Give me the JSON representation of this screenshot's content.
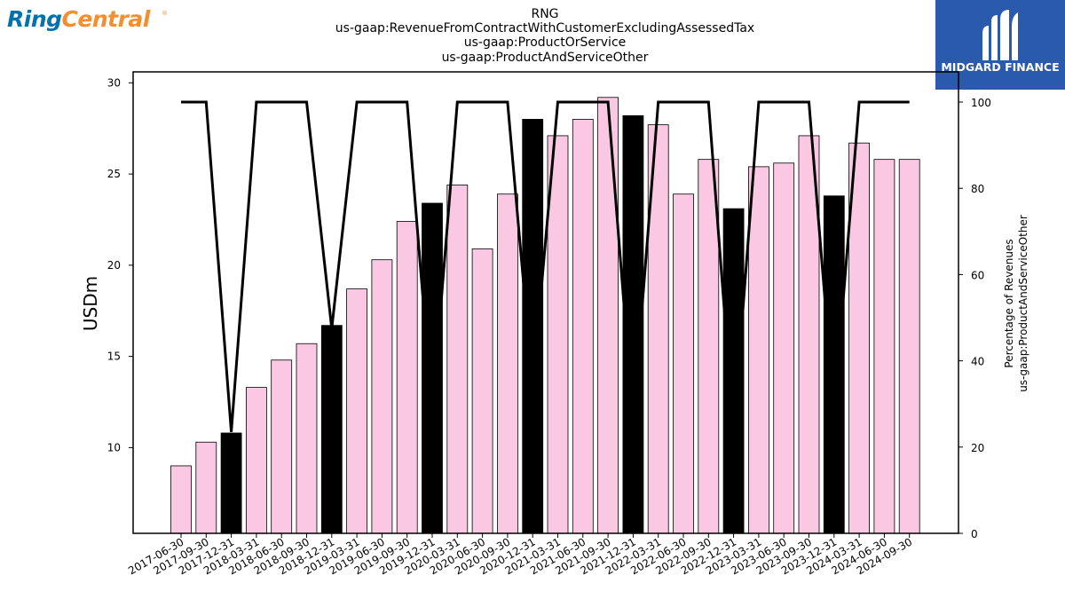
{
  "logos": {
    "left_brand": "RingCentral",
    "left_brand_parts": [
      "Ring",
      "Central"
    ],
    "left_colors": {
      "ring": "#0073ae",
      "central": "#f68d2e"
    },
    "right_brand": "MIDGARD FINANCE",
    "right_bg_color": "#2a5aac"
  },
  "chart_data": {
    "type": "bar",
    "title": [
      "RNG",
      "us-gaap:RevenueFromContractWithCustomerExcludingAssessedTax",
      "us-gaap:ProductOrService",
      "us-gaap:ProductAndServiceOther"
    ],
    "xlabel": "",
    "ylabel": "USDm",
    "y2label": [
      "Percentage of Revenues",
      "us-gaap:ProductAndServiceOther"
    ],
    "ylim": [
      5.3,
      30.6
    ],
    "yticks": [
      10,
      15,
      20,
      25,
      30
    ],
    "y2lim": [
      0,
      107
    ],
    "y2ticks": [
      0,
      20,
      40,
      60,
      80,
      100
    ],
    "grid": false,
    "categories": [
      "2017-06-30",
      "2017-09-30",
      "2017-12-31",
      "2018-03-31",
      "2018-06-30",
      "2018-09-30",
      "2018-12-31",
      "2019-03-31",
      "2019-06-30",
      "2019-09-30",
      "2019-12-31",
      "2020-03-31",
      "2020-06-30",
      "2020-09-30",
      "2020-12-31",
      "2021-03-31",
      "2021-06-30",
      "2021-09-30",
      "2021-12-31",
      "2022-03-31",
      "2022-06-30",
      "2022-09-30",
      "2022-12-31",
      "2023-03-31",
      "2023-06-30",
      "2023-09-30",
      "2023-12-31",
      "2024-03-31",
      "2024-06-30",
      "2024-09-30"
    ],
    "series": [
      {
        "kind": "bar",
        "values": [
          9.0,
          10.3,
          10.8,
          13.3,
          14.8,
          15.7,
          16.7,
          18.7,
          20.3,
          22.4,
          23.4,
          24.4,
          20.9,
          23.9,
          28.0,
          27.1,
          28.0,
          29.2,
          28.2,
          27.7,
          23.9,
          25.8,
          23.1,
          25.4,
          25.6,
          27.1,
          23.8,
          26.7,
          25.8,
          25.8
        ],
        "highlight": [
          false,
          false,
          true,
          false,
          false,
          false,
          true,
          false,
          false,
          false,
          true,
          false,
          false,
          false,
          true,
          false,
          false,
          false,
          true,
          false,
          false,
          false,
          true,
          false,
          false,
          false,
          true,
          false,
          false,
          false
        ],
        "color": "#fbc8e4",
        "highlight_color": "#000000"
      },
      {
        "kind": "line",
        "axis": "right",
        "values": [
          100,
          100,
          23.5,
          100,
          100,
          100,
          47.5,
          100,
          100,
          100,
          28,
          100,
          100,
          100,
          34,
          100,
          100,
          100,
          26,
          100,
          100,
          100,
          23.5,
          100,
          100,
          100,
          28,
          100,
          100,
          100
        ],
        "color": "#000000"
      }
    ]
  }
}
